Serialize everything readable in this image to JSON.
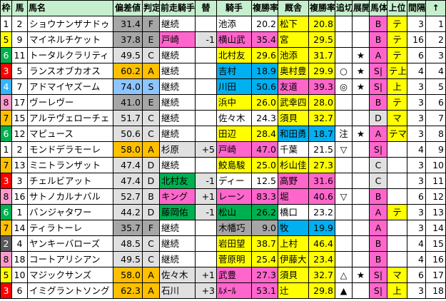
{
  "headers": [
    "枠",
    "馬",
    "馬名",
    "偏差値",
    "判定",
    "前走騎手",
    "替",
    "騎手",
    "複勝率",
    "厩舎",
    "複勝率",
    "追切",
    "展開",
    "馬体",
    "上位",
    "間隔",
    "↑"
  ],
  "colors": {
    "waku": {
      "1": "#ffffff",
      "2": "#595959",
      "3": "#ff0000",
      "4": "#33b5ff",
      "5": "#ffff00",
      "6": "#00b050",
      "7": "#ffc000",
      "8": "#ff99cc"
    },
    "header_bg": "#c6efce",
    "score_S": "#8ec5ff",
    "score_A": "#ffc000",
    "score_B": "#e0e0e0",
    "score_C": "#e0e0e0",
    "score_D": "#e0e0e0",
    "score_E": "#a6a6a6",
    "score_F": "#a6a6a6",
    "green": "#00b050",
    "blue": "#00b0f0",
    "pink": "#ff66cc",
    "yellow": "#ffff00",
    "orange": "#ffc000",
    "light_gray": "#e0e0e0",
    "dark_gray": "#a6a6a6"
  },
  "rows": [
    {
      "waku": "1",
      "num": "2",
      "name": "ショウナンザナドゥ",
      "score": "31.4",
      "grade": "F",
      "prev": "継続",
      "swap": "",
      "jockey": "池添",
      "jrate": "20.2",
      "trainer": "松下",
      "trate": "20.8",
      "oikiri": "",
      "tenkai": "",
      "bataiBadge": "B",
      "jouBadge": "テ",
      "interval": "3",
      "up": "1"
    },
    {
      "waku": "5",
      "num": "9",
      "name": "マイネルチケット",
      "score": "37.8",
      "grade": "E",
      "prev": "戸崎",
      "swap": "-1",
      "jockey": "横山武",
      "jrate": "35.4",
      "trainer": "宮",
      "trate": "29.5",
      "oikiri": "",
      "tenkai": "",
      "bataiBadge": "B",
      "jouBadge": "テ",
      "interval": "16",
      "up": "2"
    },
    {
      "waku": "6",
      "num": "11",
      "name": "トータルクラリティ",
      "score": "49.5",
      "grade": "C",
      "prev": "継続",
      "swap": "",
      "jockey": "北村友",
      "jrate": "29.6",
      "trainer": "池添",
      "trate": "31.7",
      "oikiri": "",
      "tenkai": "★",
      "bataiBadge": "A",
      "jouBadge": "テ",
      "interval": "6",
      "up": "3"
    },
    {
      "waku": "3",
      "num": "5",
      "name": "ランスオブカオス",
      "score": "60.2",
      "grade": "A",
      "prev": "継続",
      "swap": "",
      "jockey": "吉村",
      "jrate": "18.9",
      "trainer": "奥村豊",
      "trate": "29.9",
      "oikiri": "○",
      "tenkai": "★",
      "bataiBadge": "S|",
      "jouBadge": "テ上",
      "interval": "4",
      "up": "4"
    },
    {
      "waku": "4",
      "num": "7",
      "name": "アドマイヤズーム",
      "score": "74.0",
      "grade": "S",
      "prev": "継続",
      "swap": "",
      "jockey": "川田",
      "jrate": "50.6",
      "trainer": "友道",
      "trate": "39.3",
      "oikiri": "◎",
      "tenkai": "★",
      "bataiBadge": "S|",
      "jouBadge": "上",
      "interval": "3",
      "up": "5"
    },
    {
      "waku": "8",
      "num": "17",
      "name": "ヴーレヴー",
      "score": "41.0",
      "grade": "E",
      "prev": "継続",
      "swap": "",
      "jockey": "浜中",
      "jrate": "26.0",
      "trainer": "武幸四",
      "trate": "28.0",
      "oikiri": "",
      "tenkai": "",
      "bataiBadge": "B",
      "jouBadge": "テ",
      "interval": "3",
      "up": "6"
    },
    {
      "waku": "7",
      "num": "15",
      "name": "アルテヴェローチェ",
      "score": "51.7",
      "grade": "C",
      "prev": "継続",
      "swap": "",
      "jockey": "佐々木",
      "jrate": "24.3",
      "trainer": "須貝",
      "trate": "32.7",
      "oikiri": "",
      "tenkai": "",
      "bataiBadge": "D",
      "jouBadge": "マ",
      "interval": "3",
      "up": "7"
    },
    {
      "waku": "6",
      "num": "12",
      "name": "マピュース",
      "score": "50.6",
      "grade": "C",
      "prev": "継続",
      "swap": "",
      "jockey": "田辺",
      "jrate": "28.4",
      "trainer": "和田勇",
      "trate": "18.7",
      "oikiri": "注",
      "tenkai": "★",
      "bataiBadge": "A",
      "jouBadge": "テマ",
      "interval": "3",
      "up": "8"
    },
    {
      "waku": "1",
      "num": "2",
      "name": "モンドデラモーレ",
      "score": "58.0",
      "grade": "A",
      "prev": "杉原",
      "swap": "+5",
      "jockey": "戸崎",
      "jrate": "47.0",
      "trainer": "千葉",
      "trate": "21.5",
      "oikiri": "▽",
      "tenkai": "",
      "bataiBadge": "S|",
      "jouBadge": "",
      "interval": "4",
      "up": "9"
    },
    {
      "waku": "7",
      "num": "13",
      "name": "ミニトランザット",
      "score": "47.4",
      "grade": "D",
      "prev": "継続",
      "swap": "",
      "jockey": "鮫島駿",
      "jrate": "25.0",
      "trainer": "杉山佳",
      "trate": "27.3",
      "oikiri": "",
      "tenkai": "",
      "bataiBadge": "C",
      "jouBadge": "",
      "interval": "3",
      "up": "10"
    },
    {
      "waku": "3",
      "num": "3",
      "name": "チェルビアット",
      "score": "47.4",
      "grade": "D",
      "prev": "北村友",
      "swap": "-1",
      "jockey": "ディー",
      "jrate": "12.5",
      "trainer": "高野",
      "trate": "31.6",
      "oikiri": "",
      "tenkai": "",
      "bataiBadge": "C",
      "jouBadge": "",
      "interval": "3",
      "up": "11"
    },
    {
      "waku": "8",
      "num": "16",
      "name": "サトノカルナバル",
      "score": "52.7",
      "grade": "B",
      "prev": "キング",
      "swap": "+1",
      "jockey": "レーン",
      "jrate": "83.3",
      "trainer": "堀",
      "trate": "40.6",
      "oikiri": "▽",
      "tenkai": "",
      "bataiBadge": "B",
      "jouBadge": "",
      "interval": "6",
      "up": "12"
    },
    {
      "waku": "6",
      "num": "1",
      "name": "バンジャタワー",
      "score": "44.2",
      "grade": "D",
      "prev": "藤岡佑",
      "swap": "-1",
      "jockey": "松山",
      "jrate": "26.2",
      "trainer": "橋口",
      "trate": "23.2",
      "oikiri": "",
      "tenkai": "",
      "bataiBadge": "A",
      "jouBadge": "テ",
      "interval": "3",
      "up": "13"
    },
    {
      "waku": "7",
      "num": "14",
      "name": "ティラトーレ",
      "score": "35.7",
      "grade": "F",
      "prev": "継続",
      "swap": "",
      "jockey": "木幡巧",
      "jrate": "9.0",
      "trainer": "牧",
      "trate": "19.9",
      "oikiri": "",
      "tenkai": "",
      "bataiBadge": "A",
      "jouBadge": "",
      "interval": "3",
      "up": "14"
    },
    {
      "waku": "2",
      "num": "4",
      "name": "ヤンキーバローズ",
      "score": "48.5",
      "grade": "C",
      "prev": "継続",
      "swap": "",
      "jockey": "岩田望",
      "jrate": "38.7",
      "trainer": "上村",
      "trate": "46.4",
      "oikiri": "",
      "tenkai": "",
      "bataiBadge": "B",
      "jouBadge": "",
      "interval": "4",
      "up": "15"
    },
    {
      "waku": "8",
      "num": "18",
      "name": "コートアリシアン",
      "score": "49.5",
      "grade": "C",
      "prev": "継続",
      "swap": "",
      "jockey": "菅原明",
      "jrate": "25.4",
      "trainer": "伊藤大",
      "trate": "23.4",
      "oikiri": "",
      "tenkai": "",
      "bataiBadge": "B",
      "jouBadge": "",
      "interval": "4",
      "up": "16"
    },
    {
      "waku": "5",
      "num": "10",
      "name": "マジックサンズ",
      "score": "58.0",
      "grade": "A",
      "prev": "佐々木",
      "swap": "+1",
      "jockey": "武豊",
      "jrate": "27.3",
      "trainer": "須貝",
      "trate": "32.7",
      "oikiri": "△",
      "tenkai": "★",
      "bataiBadge": "S|",
      "jouBadge": "マ",
      "interval": "6",
      "up": "17"
    },
    {
      "waku": "3",
      "num": "6",
      "name": "イミグラントソング",
      "score": "62.3",
      "grade": "A",
      "prev": "石川",
      "swap": "+3",
      "jockey": "ﾙﾒｰﾙ",
      "jrate": "53.1",
      "trainer": "辻",
      "trate": "29.8",
      "oikiri": "▲",
      "tenkai": "",
      "bataiBadge": "S|",
      "jouBadge": "上",
      "interval": "3",
      "up": "18"
    }
  ]
}
